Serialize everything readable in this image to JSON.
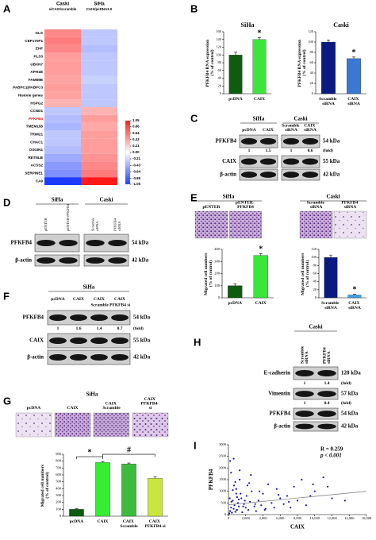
{
  "panel_letters": [
    "A",
    "B",
    "C",
    "D",
    "E",
    "F",
    "G",
    "H",
    "I"
  ],
  "chart_data": [
    {
      "type": "heatmap",
      "columns": [
        {
          "name": "Caski",
          "condition": "siCAIX/scramble"
        },
        {
          "name": "SiHa",
          "condition": "CAIX/pcDNA3.0"
        }
      ],
      "rows": [
        "GLS",
        "CEP170P1",
        "EHF",
        "PLS3",
        "UBXN7",
        "APH1B",
        "FAM69B",
        "PABPC1|PABPC3",
        "Histone genes",
        "HSPG2",
        "CCND1",
        "PFKFB4",
        "TMEM158",
        "TRIM21",
        "CHAC1",
        "OSGIN1",
        "RETNLB",
        "ACSS2",
        "SERPINE1",
        "CA9"
      ],
      "values": [
        [
          0.55,
          -0.3
        ],
        [
          0.6,
          -0.3
        ],
        [
          0.55,
          -0.35
        ],
        [
          0.45,
          -0.3
        ],
        [
          0.45,
          -0.3
        ],
        [
          0.45,
          -0.3
        ],
        [
          0.42,
          -0.25
        ],
        [
          0.45,
          -0.3
        ],
        [
          0.42,
          -0.3
        ],
        [
          0.35,
          -0.3
        ],
        [
          -0.3,
          0.35
        ],
        [
          -0.35,
          0.45
        ],
        [
          -0.4,
          0.4
        ],
        [
          -0.3,
          0.45
        ],
        [
          -0.3,
          0.45
        ],
        [
          -0.35,
          0.45
        ],
        [
          -0.45,
          0.5
        ],
        [
          -0.55,
          0.55
        ],
        [
          -0.6,
          0.6
        ],
        [
          -1.05,
          1.05
        ]
      ],
      "highlight": {
        "row": 11,
        "color": "#e01010"
      },
      "clim": [
        -1.05,
        1.05
      ],
      "cticks": [
        1.05,
        0.86,
        0.64,
        0.43,
        0.21,
        {
          "value": 0,
          "label": "0.00"
        },
        -0.21,
        -0.43,
        -0.64,
        -0.86,
        -1.05
      ],
      "colors": [
        "#1e3cff",
        "#ffffff",
        "#ff1a1a"
      ]
    },
    {
      "type": "bar",
      "title": "SiHa",
      "ylabel": "PFKFB4 RNA expression (% of control)",
      "categories": [
        "pcDNA",
        "CAIX"
      ],
      "values": [
        100,
        140
      ],
      "errors": [
        7,
        5
      ],
      "colors": [
        "#0e5c0e",
        "#39e639"
      ],
      "ylim": [
        0,
        160
      ],
      "yticks": [
        0,
        20,
        40,
        60,
        80,
        100,
        120,
        140,
        160
      ],
      "annotations": [
        {
          "text": "*",
          "category": "CAIX"
        }
      ]
    },
    {
      "type": "bar",
      "title": "Caski",
      "ylabel": "PFKFB4 RNA expression (% of control)",
      "categories": [
        "Scramble siRNA",
        "CAIX siRNA"
      ],
      "values": [
        100,
        68
      ],
      "errors": [
        4,
        3
      ],
      "colors": [
        "#0a1a80",
        "#3a78d4"
      ],
      "ylim": [
        0,
        120
      ],
      "yticks": [
        0,
        20,
        40,
        60,
        80,
        100,
        120
      ],
      "annotations": [
        {
          "text": "*",
          "category": "CAIX siRNA"
        }
      ]
    },
    {
      "type": "bar",
      "ylabel": "Migrated cell numbers (% of control)",
      "categories": [
        "pcDNA",
        "CAIX"
      ],
      "values": [
        100,
        350
      ],
      "errors": [
        15,
        15
      ],
      "colors": [
        "#0e5c0e",
        "#39e639"
      ],
      "ylim": [
        0,
        400
      ],
      "yticks": [
        0,
        100,
        200,
        300,
        400
      ],
      "annotations": [
        {
          "text": "*",
          "category": "CAIX"
        }
      ]
    },
    {
      "type": "bar",
      "ylabel": "Migrated cell numbers (% of control)",
      "categories": [
        "Scramble siRNA",
        "CAIX siRNA"
      ],
      "values": [
        100,
        7
      ],
      "errors": [
        6,
        2
      ],
      "colors": [
        "#0a1a80",
        "#3fa0e0"
      ],
      "ylim": [
        0,
        120
      ],
      "yticks": [
        0,
        20,
        40,
        60,
        80,
        100,
        120
      ],
      "annotations": [
        {
          "text": "*",
          "category": "CAIX siRNA"
        }
      ]
    },
    {
      "type": "bar",
      "ylabel": "Migrated cell numbers (% of control)",
      "categories": [
        "pcDNA",
        "CAIX",
        "CAIX Scramble",
        "CAIX PFKFB4-si"
      ],
      "values": [
        100,
        780,
        760,
        550
      ],
      "errors": [
        8,
        15,
        12,
        20
      ],
      "colors": [
        "#0e5c0e",
        "#33ee33",
        "#3dbb3d",
        "#c8e63c"
      ],
      "ylim": [
        0,
        900
      ],
      "yticks": [
        0,
        100,
        200,
        300,
        400,
        500,
        600,
        700,
        800,
        900
      ],
      "annotations": [
        {
          "text": "*",
          "from": "pcDNA",
          "to": "CAIX"
        },
        {
          "text": "#",
          "from": "CAIX",
          "to": "CAIX PFKFB4-si"
        }
      ]
    },
    {
      "type": "scatter",
      "xlabel": "CAIX",
      "ylabel": "PFKFB4",
      "color": "#1a1aa0",
      "x": [
        100,
        200,
        300,
        400,
        500,
        600,
        700,
        800,
        900,
        1000,
        1100,
        1200,
        1300,
        1500,
        1600,
        1800,
        2000,
        2100,
        2300,
        2500,
        2700,
        3000,
        3200,
        3500,
        3800,
        4000,
        4300,
        4600,
        5000,
        5300,
        5600,
        6000,
        6400,
        6800,
        7200,
        7600,
        8000,
        8500,
        9000,
        9500,
        10000,
        11000,
        11500,
        12000,
        13500,
        300,
        600,
        900,
        1200,
        1400,
        1700,
        2200,
        2600,
        3100,
        3600,
        4200,
        200,
        500,
        800,
        1000,
        5800,
        7000,
        1300,
        2400,
        150,
        350,
        650,
        950,
        1900,
        9800
      ],
      "y": [
        50,
        150,
        300,
        80,
        600,
        250,
        400,
        120,
        900,
        200,
        500,
        350,
        1500,
        700,
        100,
        450,
        300,
        800,
        200,
        550,
        1000,
        350,
        150,
        600,
        400,
        900,
        250,
        1300,
        500,
        300,
        1100,
        700,
        450,
        800,
        300,
        1200,
        600,
        1500,
        400,
        800,
        1000,
        1600,
        1200,
        700,
        600,
        1800,
        2400,
        1100,
        650,
        900,
        350,
        1250,
        1700,
        450,
        1000,
        200,
        2300,
        1050,
        1400,
        750,
        850,
        550,
        1900,
        1350,
        700,
        550,
        1250,
        200,
        600,
        1300
      ],
      "fit": {
        "x": [
          0,
          16000
        ],
        "y": [
          420,
          1000
        ],
        "color": "#888888"
      },
      "xlim": [
        0,
        16000
      ],
      "xticks": [
        0,
        {
          "value": 2000,
          "label": "2,000"
        },
        {
          "value": 4000,
          "label": "4,000"
        },
        {
          "value": 6000,
          "label": "6,000"
        },
        {
          "value": 8000,
          "label": "8,000"
        },
        {
          "value": 10000,
          "label": "10,000"
        },
        {
          "value": 12000,
          "label": "12,000"
        },
        {
          "value": 14000,
          "label": "14,000"
        },
        {
          "value": 16000,
          "label": "16,000"
        }
      ],
      "ylim": [
        0,
        3000
      ],
      "yticks": [
        0,
        500,
        1000,
        1500,
        2000,
        2500,
        3000
      ],
      "annotations": [
        "R = 0.259",
        "p < 0.001"
      ]
    }
  ],
  "blots": {
    "C": {
      "groups": [
        {
          "name": "SiHa",
          "lanes": [
            "pcDNA",
            "CAIX"
          ]
        },
        {
          "name": "Caski",
          "lanes": [
            "Scramble siRNA",
            "CAIX siRNA"
          ]
        }
      ],
      "rows": [
        {
          "name": "PFKFB4",
          "size": "54 kDa",
          "fold": [
            1,
            1.5,
            1,
            0.6
          ]
        },
        {
          "name": "CAIX",
          "size": "55 kDa"
        },
        {
          "name": "β-actin",
          "size": "42 kDa"
        }
      ],
      "fold_label": "(fold)"
    },
    "D": {
      "groups": [
        {
          "name": "SiHa",
          "lanes": [
            "pENTER",
            "pENTER-PFKFB4"
          ]
        },
        {
          "name": "Caski",
          "lanes": [
            "Scramble siRNA",
            "PFKFB4 siRNA"
          ]
        }
      ],
      "rows": [
        {
          "name": "PFKFB4",
          "size": "54 kDa"
        },
        {
          "name": "β-actin",
          "size": "42 kDa"
        }
      ]
    },
    "F": {
      "groups": [
        {
          "name": "SiHa",
          "lanes": [
            "pcDNA",
            "CAIX",
            "CAIX",
            "CAIX"
          ],
          "sublabel": "Scramble PFKFB4 si"
        }
      ],
      "rows": [
        {
          "name": "PFKFB4",
          "size": "54 kDa",
          "fold": [
            1,
            1.6,
            1.4,
            0.7
          ]
        },
        {
          "name": "CAIX",
          "size": "55 kDa"
        },
        {
          "name": "β-actin",
          "size": "42 kDa"
        }
      ],
      "fold_label": "(fold)"
    },
    "H": {
      "groups": [
        {
          "name": "Caski",
          "lanes": [
            "Scramble siRNA",
            "PFKFB4 siRNA"
          ]
        }
      ],
      "rows": [
        {
          "name": "E-cadherin",
          "size": "120 kDa",
          "fold": [
            1,
            1.4
          ]
        },
        {
          "name": "Vimentin",
          "size": "57 kDa",
          "fold": [
            1,
            0.4
          ]
        },
        {
          "name": "PFKFB4",
          "size": "54 kDa"
        },
        {
          "name": "β-actin",
          "size": "42 kDa"
        }
      ],
      "fold_label": "(fold)"
    }
  },
  "images": {
    "E": {
      "groups": [
        {
          "name": "SiHa",
          "labels": [
            "pENTER",
            "pENTER-PFKFB4"
          ]
        },
        {
          "name": "Caski",
          "labels": [
            "Scramble siRNA",
            "PFKFB4 siRNA"
          ]
        }
      ]
    },
    "G": {
      "groups": [
        {
          "name": "SiHa",
          "labels": [
            "pcDNA",
            "CAIX",
            "CAIX Scramble",
            "CAIX PFKFB4-si"
          ]
        }
      ]
    }
  }
}
